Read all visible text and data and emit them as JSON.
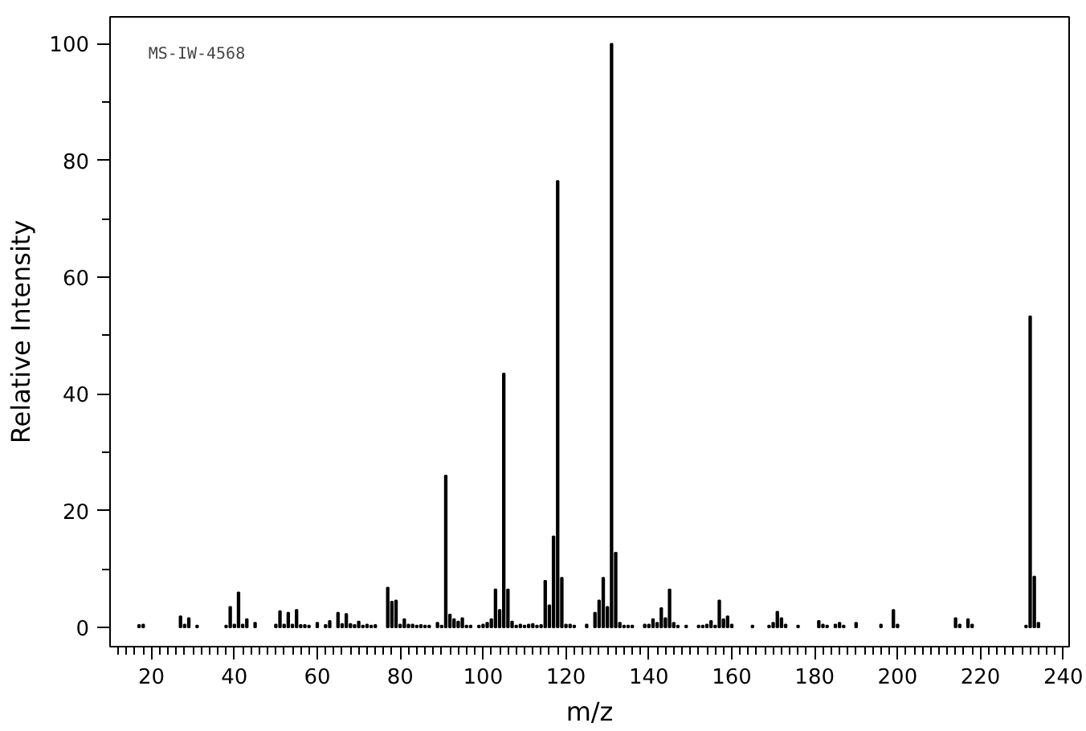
{
  "chart_data": {
    "type": "bar",
    "xlabel": "m/z",
    "ylabel": "Relative Intensity",
    "annotations": [
      "MS-IW-4568"
    ],
    "color": "#000000",
    "grid": false,
    "x": [
      17,
      18,
      27,
      28,
      29,
      31,
      38,
      39,
      40,
      41,
      42,
      43,
      45,
      50,
      51,
      52,
      53,
      54,
      55,
      56,
      57,
      58,
      60,
      62,
      63,
      65,
      66,
      67,
      68,
      69,
      70,
      71,
      72,
      73,
      74,
      77,
      78,
      79,
      80,
      81,
      82,
      83,
      84,
      85,
      86,
      87,
      89,
      90,
      91,
      92,
      93,
      94,
      95,
      96,
      97,
      99,
      100,
      101,
      102,
      103,
      104,
      105,
      106,
      107,
      108,
      109,
      110,
      111,
      112,
      113,
      114,
      115,
      116,
      117,
      118,
      119,
      120,
      121,
      122,
      125,
      127,
      128,
      129,
      130,
      131,
      132,
      133,
      134,
      135,
      136,
      139,
      140,
      141,
      142,
      143,
      144,
      145,
      146,
      147,
      149,
      152,
      153,
      154,
      155,
      156,
      157,
      158,
      159,
      160,
      165,
      169,
      170,
      171,
      172,
      173,
      176,
      181,
      182,
      183,
      185,
      186,
      187,
      190,
      196,
      199,
      200,
      214,
      215,
      217,
      218,
      231,
      232,
      233,
      234
    ],
    "values": [
      0.4,
      0.5,
      1.9,
      0.5,
      1.6,
      0.3,
      0.3,
      3.5,
      0.5,
      6.0,
      0.5,
      1.4,
      0.8,
      0.5,
      2.8,
      0.5,
      2.5,
      0.5,
      3.0,
      0.4,
      0.4,
      0.3,
      0.8,
      0.4,
      1.1,
      2.5,
      0.6,
      2.3,
      0.6,
      0.4,
      1.0,
      0.3,
      0.5,
      0.3,
      0.4,
      6.8,
      4.4,
      4.6,
      0.5,
      1.4,
      0.5,
      0.5,
      0.3,
      0.4,
      0.3,
      0.3,
      0.8,
      0.3,
      26,
      2.2,
      1.4,
      1.0,
      1.6,
      0.3,
      0.3,
      0.3,
      0.5,
      0.8,
      1.4,
      6.5,
      3.0,
      43.5,
      6.5,
      1.0,
      0.3,
      0.5,
      0.3,
      0.5,
      0.6,
      0.3,
      0.4,
      8.0,
      3.8,
      15.6,
      76.5,
      8.5,
      0.5,
      0.5,
      0.3,
      0.5,
      2.5,
      4.6,
      8.5,
      3.5,
      100,
      12.8,
      0.8,
      0.3,
      0.3,
      0.3,
      0.5,
      0.5,
      1.4,
      0.8,
      3.3,
      1.6,
      6.5,
      0.8,
      0.3,
      0.3,
      0.3,
      0.3,
      0.5,
      1.1,
      0.3,
      4.6,
      1.4,
      1.9,
      0.5,
      0.3,
      0.3,
      0.8,
      2.7,
      1.6,
      0.5,
      0.3,
      1.1,
      0.5,
      0.3,
      0.5,
      0.8,
      0.3,
      0.8,
      0.5,
      3.0,
      0.5,
      1.6,
      0.5,
      1.4,
      0.5,
      0.3,
      53.3,
      8.7,
      0.8
    ],
    "xlim": [
      10,
      241.4
    ],
    "ylim": [
      -3.3,
      104.6
    ],
    "xticks": [
      20,
      40,
      60,
      80,
      100,
      120,
      140,
      160,
      180,
      200,
      220,
      240,
      {
        "value": 12,
        "label": null
      },
      {
        "value": 14,
        "label": null
      },
      {
        "value": 16,
        "label": null
      },
      {
        "value": 18,
        "label": null
      },
      {
        "value": 22,
        "label": null
      },
      {
        "value": 24,
        "label": null
      },
      {
        "value": 26,
        "label": null
      },
      {
        "value": 28,
        "label": null
      },
      {
        "value": 30,
        "label": null
      },
      {
        "value": 32,
        "label": null
      },
      {
        "value": 34,
        "label": null
      },
      {
        "value": 36,
        "label": null
      },
      {
        "value": 38,
        "label": null
      },
      {
        "value": 42,
        "label": null
      },
      {
        "value": 44,
        "label": null
      },
      {
        "value": 46,
        "label": null
      },
      {
        "value": 48,
        "label": null
      },
      {
        "value": 50,
        "label": null
      },
      {
        "value": 52,
        "label": null
      },
      {
        "value": 54,
        "label": null
      },
      {
        "value": 56,
        "label": null
      },
      {
        "value": 58,
        "label": null
      },
      {
        "value": 62,
        "label": null
      },
      {
        "value": 64,
        "label": null
      },
      {
        "value": 66,
        "label": null
      },
      {
        "value": 68,
        "label": null
      },
      {
        "value": 70,
        "label": null
      },
      {
        "value": 72,
        "label": null
      },
      {
        "value": 74,
        "label": null
      },
      {
        "value": 76,
        "label": null
      },
      {
        "value": 78,
        "label": null
      },
      {
        "value": 82,
        "label": null
      },
      {
        "value": 84,
        "label": null
      },
      {
        "value": 86,
        "label": null
      },
      {
        "value": 88,
        "label": null
      },
      {
        "value": 90,
        "label": null
      },
      {
        "value": 92,
        "label": null
      },
      {
        "value": 94,
        "label": null
      },
      {
        "value": 96,
        "label": null
      },
      {
        "value": 98,
        "label": null
      },
      {
        "value": 102,
        "label": null
      },
      {
        "value": 104,
        "label": null
      },
      {
        "value": 106,
        "label": null
      },
      {
        "value": 108,
        "label": null
      },
      {
        "value": 110,
        "label": null
      },
      {
        "value": 112,
        "label": null
      },
      {
        "value": 114,
        "label": null
      },
      {
        "value": 116,
        "label": null
      },
      {
        "value": 118,
        "label": null
      },
      {
        "value": 122,
        "label": null
      },
      {
        "value": 124,
        "label": null
      },
      {
        "value": 126,
        "label": null
      },
      {
        "value": 128,
        "label": null
      },
      {
        "value": 130,
        "label": null
      },
      {
        "value": 132,
        "label": null
      },
      {
        "value": 134,
        "label": null
      },
      {
        "value": 136,
        "label": null
      },
      {
        "value": 138,
        "label": null
      },
      {
        "value": 142,
        "label": null
      },
      {
        "value": 144,
        "label": null
      },
      {
        "value": 146,
        "label": null
      },
      {
        "value": 148,
        "label": null
      },
      {
        "value": 150,
        "label": null
      },
      {
        "value": 152,
        "label": null
      },
      {
        "value": 154,
        "label": null
      },
      {
        "value": 156,
        "label": null
      },
      {
        "value": 158,
        "label": null
      },
      {
        "value": 162,
        "label": null
      },
      {
        "value": 164,
        "label": null
      },
      {
        "value": 166,
        "label": null
      },
      {
        "value": 168,
        "label": null
      },
      {
        "value": 170,
        "label": null
      },
      {
        "value": 172,
        "label": null
      },
      {
        "value": 174,
        "label": null
      },
      {
        "value": 176,
        "label": null
      },
      {
        "value": 178,
        "label": null
      },
      {
        "value": 182,
        "label": null
      },
      {
        "value": 184,
        "label": null
      },
      {
        "value": 186,
        "label": null
      },
      {
        "value": 188,
        "label": null
      },
      {
        "value": 190,
        "label": null
      },
      {
        "value": 192,
        "label": null
      },
      {
        "value": 194,
        "label": null
      },
      {
        "value": 196,
        "label": null
      },
      {
        "value": 198,
        "label": null
      },
      {
        "value": 202,
        "label": null
      },
      {
        "value": 204,
        "label": null
      },
      {
        "value": 206,
        "label": null
      },
      {
        "value": 208,
        "label": null
      },
      {
        "value": 210,
        "label": null
      },
      {
        "value": 212,
        "label": null
      },
      {
        "value": 214,
        "label": null
      },
      {
        "value": 216,
        "label": null
      },
      {
        "value": 218,
        "label": null
      },
      {
        "value": 222,
        "label": null
      },
      {
        "value": 224,
        "label": null
      },
      {
        "value": 226,
        "label": null
      },
      {
        "value": 228,
        "label": null
      },
      {
        "value": 230,
        "label": null
      },
      {
        "value": 232,
        "label": null
      },
      {
        "value": 234,
        "label": null
      },
      {
        "value": 236,
        "label": null
      },
      {
        "value": 238,
        "label": null
      }
    ],
    "yticks": [
      0,
      20,
      40,
      60,
      80,
      100,
      {
        "value": 10,
        "label": null
      },
      {
        "value": 30,
        "label": null
      },
      {
        "value": 50,
        "label": null
      },
      {
        "value": 70,
        "label": null
      },
      {
        "value": 90,
        "label": null
      }
    ]
  }
}
